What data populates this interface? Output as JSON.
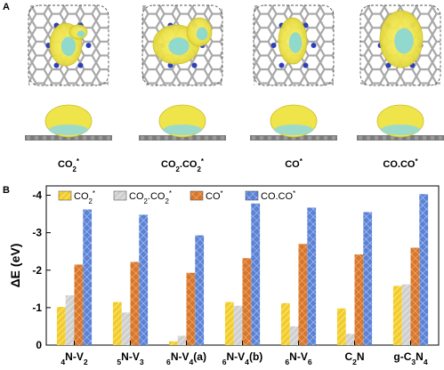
{
  "panel_a": {
    "letter": "A",
    "structures": [
      {
        "label": "CO2*"
      },
      {
        "label": "CO2.CO2*"
      },
      {
        "label": "CO*"
      },
      {
        "label": "CO.CO*"
      }
    ]
  },
  "chart_data": {
    "panel_letter": "B",
    "type": "bar",
    "ylabel": "ΔE (eV)",
    "xlabel": "",
    "title": "",
    "ylim": [
      0,
      -4.25
    ],
    "yticks": [
      0,
      -1,
      -2,
      -3,
      -4
    ],
    "ytick_labels": [
      "0",
      "-1",
      "-2",
      "-3",
      "-4"
    ],
    "grid": false,
    "legend_position": "top-left",
    "categories": [
      "4N-V2",
      "5N-V3",
      "6N-V4(a)",
      "6N-V4(b)",
      "6N-V6",
      "C2N",
      "g-C3N4"
    ],
    "series": [
      {
        "name": "CO2*",
        "color": "#f2cc2a",
        "pattern": "hatch-yellow",
        "values": [
          -1.02,
          -1.15,
          -0.1,
          -1.15,
          -1.12,
          -0.98,
          -1.58
        ]
      },
      {
        "name": "CO2.CO2*",
        "color": "#d0d0d0",
        "pattern": "hatch-gray",
        "values": [
          -1.33,
          -0.87,
          -0.25,
          -1.05,
          -0.5,
          -0.3,
          -1.62
        ]
      },
      {
        "name": "CO*",
        "color": "#d9762a",
        "pattern": "cross-orange",
        "values": [
          -2.15,
          -2.22,
          -1.93,
          -2.32,
          -2.7,
          -2.42,
          -2.6
        ]
      },
      {
        "name": "CO.CO*",
        "color": "#5b82d6",
        "pattern": "cross-blue",
        "values": [
          -3.62,
          -3.48,
          -2.93,
          -3.78,
          -3.67,
          -3.55,
          -4.03
        ]
      }
    ]
  }
}
